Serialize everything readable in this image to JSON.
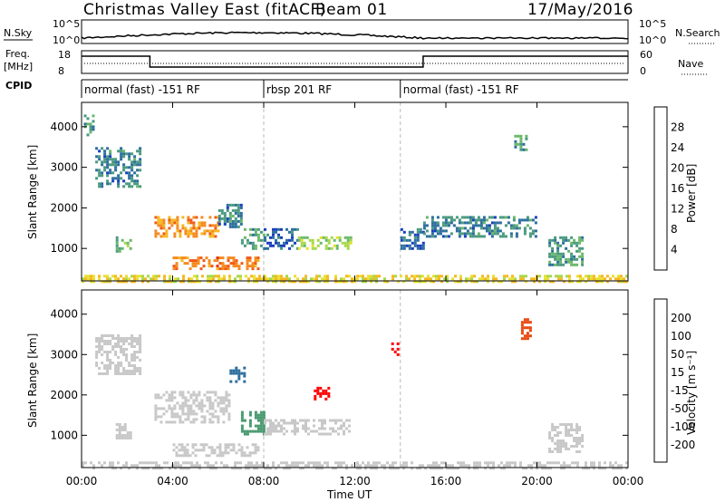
{
  "header": {
    "title": "Christmas Valley East (fitACF)",
    "beam": "Beam 01",
    "date": "17/May/2016"
  },
  "panels": {
    "nsky": {
      "left_label": "N.Sky",
      "right_label": "N.Search",
      "left_ticks": [
        "10^5",
        "10^0"
      ],
      "right_ticks": [
        "10^5",
        "10^0"
      ]
    },
    "freq": {
      "left_label_1": "Freq.",
      "left_label_2": "[MHz]",
      "left_ticks": [
        "18",
        "8"
      ],
      "right_ticks": [
        "60",
        "0"
      ],
      "right_label": "Nave"
    },
    "cpid": {
      "label": "CPID",
      "modes": [
        {
          "name": "normal (fast) -151 RF",
          "start_h": 0,
          "end_h": 8
        },
        {
          "name": "rbsp 201 RF",
          "start_h": 8,
          "end_h": 14
        },
        {
          "name": "normal (fast) -151 RF",
          "start_h": 14,
          "end_h": 24
        }
      ]
    }
  },
  "chart_data": [
    {
      "type": "heatmap",
      "name": "power",
      "xlabel": "",
      "ylabel": "Slant Range [km]",
      "xlim": [
        0,
        24
      ],
      "ylim": [
        200,
        4600
      ],
      "yticks": [
        1000,
        2000,
        3000,
        4000
      ],
      "colorbar": {
        "label": "Power [dB]",
        "ticks": [
          4,
          8,
          12,
          16,
          20,
          24,
          28
        ],
        "range": [
          0,
          32
        ],
        "colors": [
          "#0000ff",
          "#1a3fbf",
          "#2e6f9e",
          "#4a9a80",
          "#6ab86a",
          "#a7d84a",
          "#e8e030",
          "#f5b820",
          "#f58a20",
          "#f05a18",
          "#e82a10",
          "#ff0000"
        ]
      },
      "regions": [
        {
          "t0": 0.1,
          "t1": 0.5,
          "r0": 3800,
          "r1": 4300,
          "value": 10
        },
        {
          "t0": 0.6,
          "t1": 2.6,
          "r0": 2500,
          "r1": 3500,
          "value": 8
        },
        {
          "t0": 1.5,
          "t1": 2.2,
          "r0": 900,
          "r1": 1300,
          "value": 12
        },
        {
          "t0": 3.2,
          "t1": 6.0,
          "r0": 1300,
          "r1": 1800,
          "value": 22
        },
        {
          "t0": 6.0,
          "t1": 7.0,
          "r0": 1500,
          "r1": 2100,
          "value": 8
        },
        {
          "t0": 7.0,
          "t1": 8.0,
          "r0": 1000,
          "r1": 1500,
          "value": 10
        },
        {
          "t0": 4.0,
          "t1": 7.8,
          "r0": 500,
          "r1": 800,
          "value": 24
        },
        {
          "t0": 8.0,
          "t1": 9.5,
          "r0": 1000,
          "r1": 1500,
          "value": 6
        },
        {
          "t0": 9.5,
          "t1": 11.8,
          "r0": 1000,
          "r1": 1300,
          "value": 14
        },
        {
          "t0": 14.0,
          "t1": 15.0,
          "r0": 1000,
          "r1": 1500,
          "value": 6
        },
        {
          "t0": 15.0,
          "t1": 20.0,
          "r0": 1300,
          "r1": 1800,
          "value": 8
        },
        {
          "t0": 20.5,
          "t1": 22.0,
          "r0": 600,
          "r1": 1300,
          "value": 10
        },
        {
          "t0": 19.0,
          "t1": 19.5,
          "r0": 3400,
          "r1": 3800,
          "value": 10
        },
        {
          "t0": 0.0,
          "t1": 24.0,
          "r0": 200,
          "r1": 350,
          "value": 18
        }
      ]
    },
    {
      "type": "heatmap",
      "name": "velocity",
      "xlabel": "Time UT",
      "ylabel": "Slant Range [km]",
      "xlim": [
        0,
        24
      ],
      "ylim": [
        200,
        4600
      ],
      "yticks": [
        1000,
        2000,
        3000,
        4000
      ],
      "xticks": [
        "00:00",
        "04:00",
        "08:00",
        "12:00",
        "16:00",
        "20:00",
        "00:00"
      ],
      "colorbar": {
        "label": "Velocity [m s⁻¹]",
        "ticks": [
          "200",
          "100",
          "50",
          "15",
          "-15",
          "-50",
          "-100",
          "-200"
        ],
        "colors": [
          "#1a3fbf",
          "#2e6f9e",
          "#4a9a70",
          "#6ac040",
          "#90d840",
          "#c8c8c8",
          "#c8c8c8",
          "#f0d040",
          "#f5b020",
          "#f58020",
          "#e84a10",
          "#ff0000"
        ]
      },
      "regions": [
        {
          "t0": 0.6,
          "t1": 2.6,
          "r0": 2500,
          "r1": 3500,
          "value": 0
        },
        {
          "t0": 1.5,
          "t1": 2.2,
          "r0": 900,
          "r1": 1300,
          "value": 0
        },
        {
          "t0": 3.2,
          "t1": 6.5,
          "r0": 1300,
          "r1": 2100,
          "value": 0
        },
        {
          "t0": 6.5,
          "t1": 7.2,
          "r0": 2300,
          "r1": 2700,
          "value": 150
        },
        {
          "t0": 7.0,
          "t1": 8.0,
          "r0": 1000,
          "r1": 1600,
          "value": 120
        },
        {
          "t0": 4.0,
          "t1": 7.8,
          "r0": 500,
          "r1": 800,
          "value": 30
        },
        {
          "t0": 8.0,
          "t1": 11.8,
          "r0": 1000,
          "r1": 1400,
          "value": 30
        },
        {
          "t0": 10.2,
          "t1": 10.8,
          "r0": 1900,
          "r1": 2200,
          "value": -180
        },
        {
          "t0": 13.6,
          "t1": 13.9,
          "r0": 2900,
          "r1": 3300,
          "value": -180
        },
        {
          "t0": 19.3,
          "t1": 19.7,
          "r0": 3400,
          "r1": 3900,
          "value": -150
        },
        {
          "t0": 20.5,
          "t1": 22.0,
          "r0": 600,
          "r1": 1300,
          "value": 0
        },
        {
          "t0": 0.0,
          "t1": 24.0,
          "r0": 200,
          "r1": 350,
          "value": -30
        }
      ]
    }
  ]
}
